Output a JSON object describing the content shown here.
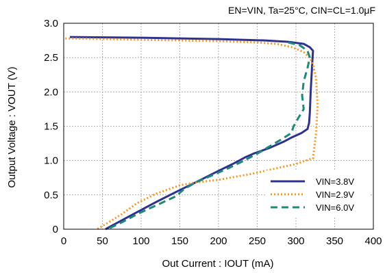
{
  "chart_data": {
    "type": "line",
    "title": "",
    "condition_note": "EN=VIN, Ta=25°C, CIN=CL=1.0μF",
    "xlabel": "Out Current : IOUT (mA)",
    "ylabel": "Output Voltage : VOUT (V)",
    "xlim": [
      0,
      400
    ],
    "ylim": [
      0,
      3.0
    ],
    "xticks": [
      "0",
      "50",
      "100",
      "150",
      "200",
      "250",
      "300",
      "350",
      "400"
    ],
    "yticks": [
      "0",
      "0.5",
      "1.0",
      "1.5",
      "2.0",
      "2.5",
      "3.0"
    ],
    "grid": true,
    "legend_position": "bottom-right",
    "series": [
      {
        "name": "VIN=3.8V",
        "color": "#2e3192",
        "style": "solid",
        "points": [
          [
            8,
            2.8
          ],
          [
            100,
            2.79
          ],
          [
            200,
            2.77
          ],
          [
            260,
            2.75
          ],
          [
            290,
            2.73
          ],
          [
            310,
            2.7
          ],
          [
            318,
            2.65
          ],
          [
            322,
            2.6
          ],
          [
            321,
            2.4
          ],
          [
            319,
            2.0
          ],
          [
            318,
            1.7
          ],
          [
            317,
            1.55
          ],
          [
            315,
            1.46
          ],
          [
            307,
            1.4
          ],
          [
            295,
            1.34
          ],
          [
            285,
            1.28
          ],
          [
            265,
            1.18
          ],
          [
            245,
            1.1
          ],
          [
            235,
            1.05
          ],
          [
            220,
            0.96
          ],
          [
            200,
            0.85
          ],
          [
            170,
            0.68
          ],
          [
            150,
            0.57
          ],
          [
            120,
            0.4
          ],
          [
            90,
            0.22
          ],
          [
            62,
            0.05
          ],
          [
            54,
            0.0
          ]
        ]
      },
      {
        "name": "VIN=2.9V",
        "color": "#f7941d",
        "style": "dotted",
        "points": [
          [
            2,
            2.78
          ],
          [
            100,
            2.76
          ],
          [
            200,
            2.74
          ],
          [
            250,
            2.72
          ],
          [
            275,
            2.7
          ],
          [
            295,
            2.65
          ],
          [
            310,
            2.58
          ],
          [
            318,
            2.5
          ],
          [
            322,
            2.4
          ],
          [
            326,
            2.2
          ],
          [
            328,
            1.8
          ],
          [
            326,
            1.4
          ],
          [
            322,
            1.03
          ],
          [
            318,
            1.02
          ],
          [
            300,
            0.95
          ],
          [
            280,
            0.9
          ],
          [
            260,
            0.85
          ],
          [
            240,
            0.8
          ],
          [
            220,
            0.76
          ],
          [
            200,
            0.72
          ],
          [
            170,
            0.68
          ],
          [
            150,
            0.64
          ],
          [
            120,
            0.52
          ],
          [
            95,
            0.38
          ],
          [
            75,
            0.22
          ],
          [
            55,
            0.08
          ],
          [
            43,
            0.0
          ]
        ]
      },
      {
        "name": "VIN=6.0V",
        "color": "#1a8a7a",
        "style": "dashed",
        "points": [
          [
            290,
            2.72
          ],
          [
            305,
            2.68
          ],
          [
            315,
            2.6
          ],
          [
            318,
            2.5
          ],
          [
            315,
            2.35
          ],
          [
            310,
            2.15
          ],
          [
            308,
            1.95
          ],
          [
            310,
            1.75
          ],
          [
            303,
            1.62
          ],
          [
            297,
            1.5
          ],
          [
            294,
            1.4
          ],
          [
            280,
            1.3
          ],
          [
            265,
            1.2
          ],
          [
            250,
            1.1
          ],
          [
            233,
            1.0
          ],
          [
            215,
            0.9
          ],
          [
            195,
            0.8
          ],
          [
            170,
            0.68
          ],
          [
            155,
            0.58
          ],
          [
            145,
            0.48
          ],
          [
            120,
            0.35
          ],
          [
            95,
            0.22
          ],
          [
            75,
            0.1
          ],
          [
            60,
            0.02
          ],
          [
            58,
            0.0
          ]
        ]
      }
    ]
  }
}
